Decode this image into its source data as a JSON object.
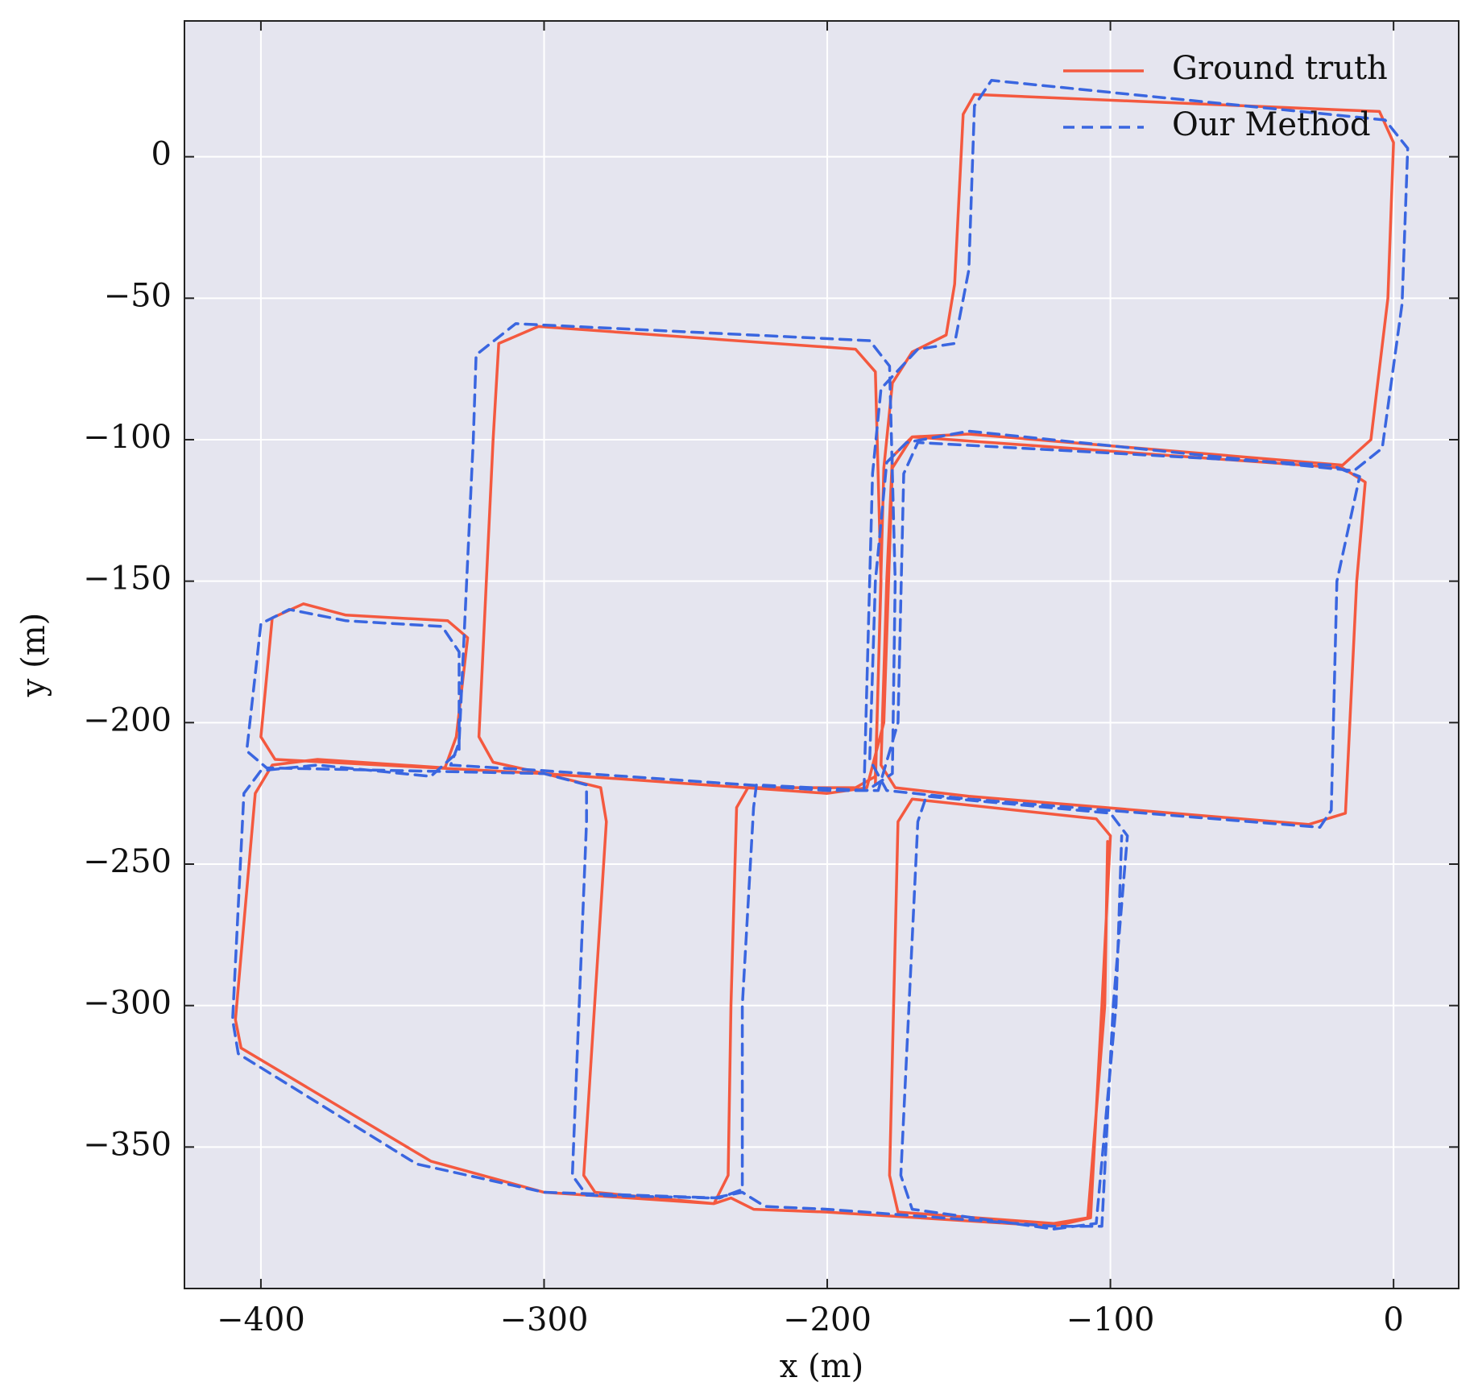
{
  "chart_data": {
    "type": "line",
    "xlabel": "x (m)",
    "ylabel": "y (m)",
    "xlim": [
      -427,
      23
    ],
    "ylim": [
      -400,
      48
    ],
    "xticks": [
      {
        "value": -400,
        "label": "−400"
      },
      {
        "value": -300,
        "label": "−300"
      },
      {
        "value": -200,
        "label": "−200"
      },
      {
        "value": -100,
        "label": "−100"
      },
      0
    ],
    "yticks": [
      {
        "value": -350,
        "label": "−350"
      },
      {
        "value": -300,
        "label": "−300"
      },
      {
        "value": -250,
        "label": "−250"
      },
      {
        "value": -200,
        "label": "−200"
      },
      {
        "value": -150,
        "label": "−150"
      },
      {
        "value": -100,
        "label": "−100"
      },
      {
        "value": -50,
        "label": "−50"
      },
      0
    ],
    "grid": true,
    "legend": "upper right",
    "series": [
      {
        "name": "Ground truth",
        "color": "#f4593f",
        "linestyle": "solid",
        "x": [
          -183,
          -180,
          -177,
          -170,
          -158,
          -155,
          -152,
          -148,
          -5,
          0,
          -2,
          -8,
          -18,
          -150,
          -170,
          -177,
          -179,
          -181,
          -176,
          -150,
          -30,
          -17,
          -13,
          -10,
          -18,
          -170,
          -177,
          -180,
          -186,
          -200,
          -300,
          -318,
          -323,
          -318,
          -316,
          -302,
          -190,
          -183,
          -181,
          -183,
          -190,
          -228,
          -232,
          -234,
          -235,
          -240,
          -300,
          -340,
          -407,
          -409,
          -402,
          -396,
          -380,
          -335,
          -331,
          -327,
          -334,
          -370,
          -385,
          -396,
          -400,
          -395,
          -300,
          -280,
          -278,
          -286,
          -282,
          -240,
          -234,
          -226,
          -200,
          -120,
          -107,
          -103,
          -100,
          -105,
          -170,
          -175,
          -178,
          -175,
          -120,
          -108,
          -102,
          -101
        ],
        "y": [
          -222,
          -110,
          -80,
          -69,
          -63,
          -45,
          15,
          22,
          16,
          5,
          -50,
          -100,
          -109,
          -98,
          -99,
          -106,
          -150,
          -215,
          -223,
          -226,
          -236,
          -232,
          -150,
          -115,
          -110,
          -99,
          -110,
          -200,
          -223,
          -225,
          -218,
          -214,
          -205,
          -100,
          -66,
          -60,
          -68,
          -76,
          -150,
          -219,
          -223,
          -223,
          -230,
          -300,
          -360,
          -370,
          -366,
          -355,
          -315,
          -305,
          -225,
          -215,
          -213,
          -216,
          -205,
          -170,
          -164,
          -162,
          -158,
          -163,
          -205,
          -213,
          -218,
          -223,
          -235,
          -360,
          -366,
          -370,
          -368,
          -372,
          -373,
          -378,
          -375,
          -300,
          -240,
          -234,
          -227,
          -235,
          -360,
          -373,
          -377,
          -375,
          -300,
          -242
        ]
      },
      {
        "name": "Our Method",
        "color": "#3a66e0",
        "linestyle": "dashed",
        "x": [
          -187,
          -184,
          -181,
          -168,
          -155,
          -150,
          -148,
          -142,
          -3,
          5,
          3,
          -4,
          -14,
          -150,
          -172,
          -179,
          -183,
          -185,
          -179,
          -150,
          -26,
          -22,
          -20,
          -12,
          -22,
          -168,
          -173,
          -175,
          -182,
          -200,
          -300,
          -333,
          -330,
          -325,
          -324,
          -310,
          -185,
          -178,
          -176,
          -177,
          -186,
          -225,
          -226,
          -230,
          -230,
          -238,
          -300,
          -345,
          -408,
          -410,
          -406,
          -400,
          -380,
          -340,
          -330,
          -330,
          -336,
          -370,
          -390,
          -400,
          -405,
          -398,
          -300,
          -285,
          -285,
          -290,
          -285,
          -240,
          -230,
          -222,
          -200,
          -120,
          -103,
          -99,
          -94,
          -100,
          -165,
          -168,
          -174,
          -170,
          -120,
          -105,
          -98,
          -96
        ],
        "y": [
          -224,
          -112,
          -82,
          -68,
          -66,
          -40,
          18,
          27,
          13,
          3,
          -52,
          -103,
          -111,
          -97,
          -101,
          -108,
          -150,
          -213,
          -224,
          -227,
          -237,
          -231,
          -150,
          -113,
          -109,
          -101,
          -112,
          -200,
          -224,
          -224,
          -217,
          -215,
          -207,
          -100,
          -70,
          -59,
          -65,
          -74,
          -150,
          -218,
          -224,
          -222,
          -230,
          -300,
          -365,
          -368,
          -366,
          -356,
          -317,
          -305,
          -225,
          -217,
          -215,
          -219,
          -210,
          -175,
          -166,
          -164,
          -160,
          -165,
          -210,
          -216,
          -218,
          -222,
          -235,
          -360,
          -367,
          -368,
          -366,
          -371,
          -372,
          -378,
          -378,
          -300,
          -240,
          -232,
          -226,
          -235,
          -360,
          -372,
          -379,
          -377,
          -300,
          -240
        ]
      }
    ]
  }
}
